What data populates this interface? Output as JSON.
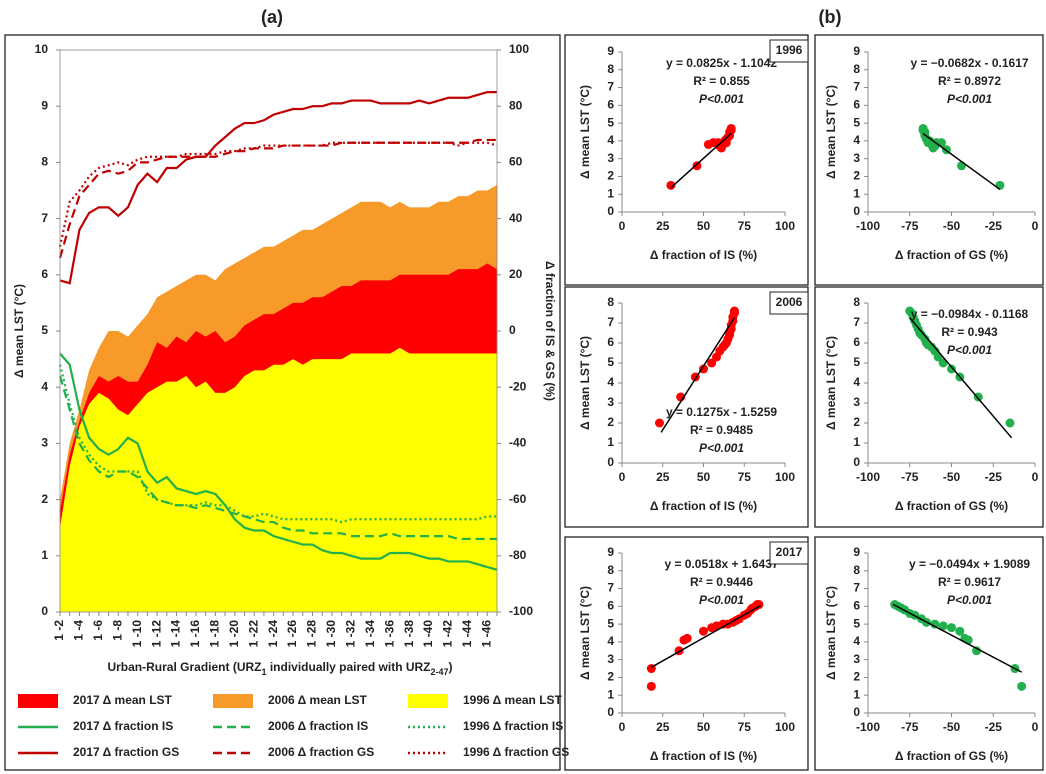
{
  "chart_data": [
    {
      "type": "area",
      "panel_label": "(a)",
      "y_label": "Δ mean LST (°C)",
      "y2_label": "Δ fraction of IS & GS (%)",
      "x_label": [
        "Urban-Rural Gradient (URZ",
        "1",
        " individually paired with URZ",
        "2-47",
        ")"
      ],
      "categories": [
        "1 -2",
        null,
        "1 -4",
        null,
        "1 -6",
        null,
        "1 -8",
        null,
        "1 -10",
        null,
        "1 -12",
        null,
        "1 -14",
        null,
        "1 -16",
        null,
        "1 -18",
        null,
        "1 -20",
        null,
        "1 -22",
        null,
        "1 -24",
        null,
        "1 -26",
        null,
        "1 -28",
        null,
        "1 -30",
        null,
        "1 -32",
        null,
        "1 -34",
        null,
        "1 -36",
        null,
        "1 -38",
        null,
        "1 -40",
        null,
        "1 -42",
        null,
        "1 -44",
        null,
        "1 -46",
        null
      ],
      "ylim": [
        0,
        10
      ],
      "yticks": [
        0,
        1,
        2,
        3,
        4,
        5,
        6,
        7,
        8,
        9,
        10
      ],
      "y2lim": [
        -100,
        100
      ],
      "y2ticks": [
        -100,
        -80,
        -60,
        -40,
        -20,
        0,
        20,
        40,
        60,
        80,
        100
      ],
      "series": [
        {
          "name": "2017 Δ mean LST",
          "style": "area",
          "color": "#ff0000",
          "values": [
            1.8,
            2.8,
            3.4,
            3.9,
            4.2,
            4.1,
            4.2,
            4.1,
            4.1,
            4.4,
            4.8,
            4.7,
            4.9,
            4.8,
            5.0,
            4.9,
            5.0,
            4.8,
            4.9,
            5.1,
            5.2,
            5.3,
            5.3,
            5.4,
            5.5,
            5.5,
            5.6,
            5.6,
            5.7,
            5.8,
            5.8,
            5.9,
            5.9,
            5.9,
            5.9,
            6.0,
            6.0,
            6.0,
            6.0,
            6.0,
            6.0,
            6.1,
            6.1,
            6.1,
            6.2,
            6.1
          ]
        },
        {
          "name": "2006 Δ mean LST",
          "style": "area",
          "color": "#f79a2a",
          "values": [
            2.0,
            3.0,
            3.6,
            4.3,
            4.7,
            5.0,
            5.0,
            4.9,
            5.1,
            5.3,
            5.6,
            5.7,
            5.8,
            5.9,
            6.0,
            6.0,
            5.9,
            6.1,
            6.2,
            6.3,
            6.4,
            6.5,
            6.5,
            6.6,
            6.7,
            6.8,
            6.8,
            6.9,
            7.0,
            7.1,
            7.2,
            7.3,
            7.3,
            7.3,
            7.2,
            7.3,
            7.2,
            7.2,
            7.2,
            7.3,
            7.3,
            7.4,
            7.4,
            7.5,
            7.5,
            7.6
          ]
        },
        {
          "name": "1996 Δ mean LST",
          "style": "area",
          "color": "#ffff00",
          "values": [
            1.5,
            2.6,
            3.3,
            3.7,
            3.9,
            3.8,
            3.6,
            3.5,
            3.7,
            3.9,
            4.0,
            4.1,
            4.1,
            4.2,
            4.0,
            4.1,
            3.9,
            3.9,
            4.0,
            4.2,
            4.3,
            4.3,
            4.4,
            4.4,
            4.5,
            4.4,
            4.5,
            4.5,
            4.5,
            4.5,
            4.6,
            4.6,
            4.6,
            4.6,
            4.6,
            4.7,
            4.6,
            4.6,
            4.6,
            4.6,
            4.6,
            4.6,
            4.6,
            4.6,
            4.6,
            4.6
          ]
        },
        {
          "name": "2017 Δ fraction IS",
          "style": "solid",
          "axis": "y2",
          "color": "#21b04b",
          "values": [
            -8,
            -12,
            -28,
            -38,
            -42,
            -44,
            -42,
            -38,
            -40,
            -50,
            -54,
            -52,
            -56,
            -57,
            -58,
            -57,
            -58,
            -62,
            -67,
            -70,
            -71,
            -71,
            -73,
            -74,
            -75,
            -76,
            -76,
            -78,
            -79,
            -79,
            -80,
            -81,
            -81,
            -81,
            -79,
            -79,
            -79,
            -80,
            -81,
            -81,
            -82,
            -82,
            -82,
            -83,
            -84,
            -85
          ]
        },
        {
          "name": "2006 Δ fraction IS",
          "style": "dashed",
          "axis": "y2",
          "color": "#21b04b",
          "values": [
            -16,
            -28,
            -40,
            -46,
            -50,
            -52,
            -50,
            -50,
            -52,
            -56,
            -60,
            -61,
            -62,
            -62,
            -63,
            -62,
            -63,
            -64,
            -65,
            -66,
            -67,
            -68,
            -68,
            -70,
            -71,
            -71,
            -72,
            -72,
            -72,
            -72,
            -73,
            -73,
            -73,
            -73,
            -72,
            -73,
            -73,
            -73,
            -73,
            -73,
            -73,
            -74,
            -74,
            -74,
            -74,
            -74
          ]
        },
        {
          "name": "1996 Δ fraction IS",
          "style": "dotted",
          "axis": "y2",
          "color": "#21b04b",
          "values": [
            -12,
            -26,
            -38,
            -44,
            -48,
            -50,
            -50,
            -50,
            -50,
            -58,
            -60,
            -61,
            -62,
            -62,
            -62,
            -61,
            -62,
            -62,
            -64,
            -66,
            -66,
            -65,
            -66,
            -67,
            -67,
            -67,
            -67,
            -67,
            -67,
            -68,
            -67,
            -67,
            -67,
            -67,
            -67,
            -67,
            -67,
            -67,
            -67,
            -67,
            -67,
            -67,
            -67,
            -67,
            -66,
            -66
          ]
        },
        {
          "name": "2017 Δ fraction GS",
          "style": "solid",
          "axis": "y2",
          "color": "#c00000",
          "values": [
            18,
            17,
            36,
            42,
            44,
            44,
            41,
            44,
            52,
            56,
            53,
            58,
            58,
            61,
            62,
            62,
            66,
            69,
            72,
            74,
            74,
            75,
            77,
            78,
            79,
            79,
            80,
            80,
            81,
            81,
            82,
            82,
            82,
            81,
            81,
            81,
            81,
            82,
            81,
            82,
            83,
            83,
            83,
            84,
            85,
            85
          ]
        },
        {
          "name": "2006 Δ fraction GS",
          "style": "dashed",
          "axis": "y2",
          "color": "#c00000",
          "values": [
            26,
            38,
            48,
            52,
            56,
            57,
            56,
            57,
            60,
            60,
            61,
            62,
            62,
            62,
            62,
            62,
            62,
            63,
            64,
            64,
            65,
            65,
            65,
            66,
            66,
            66,
            66,
            66,
            66,
            67,
            67,
            67,
            67,
            67,
            67,
            67,
            67,
            67,
            67,
            67,
            67,
            67,
            67,
            68,
            68,
            68
          ]
        },
        {
          "name": "1996 Δ fraction GS",
          "style": "dotted",
          "axis": "y2",
          "color": "#c00000",
          "values": [
            30,
            46,
            50,
            55,
            58,
            59,
            60,
            59,
            61,
            62,
            62,
            62,
            62,
            63,
            63,
            63,
            63,
            64,
            64,
            65,
            65,
            66,
            66,
            66,
            66,
            66,
            66,
            66,
            67,
            67,
            67,
            67,
            67,
            67,
            67,
            67,
            67,
            67,
            67,
            67,
            67,
            66,
            67,
            67,
            67,
            66
          ]
        }
      ]
    },
    {
      "type": "scatter",
      "panel_label": "(b)",
      "year": "1996",
      "x_label": "Δ fraction of IS (%)",
      "y_label": "Δ mean LST (°C)",
      "xlim": [
        0,
        100
      ],
      "xticks": [
        0,
        25,
        50,
        75,
        100
      ],
      "ylim": [
        0,
        9
      ],
      "yticks": [
        0,
        1,
        2,
        3,
        4,
        5,
        6,
        7,
        8,
        9
      ],
      "color": "#ff0000",
      "x": [
        30,
        46,
        53,
        56,
        59,
        60,
        61,
        62,
        63,
        64,
        64,
        65,
        66,
        66,
        67,
        67
      ],
      "y": [
        1.5,
        2.6,
        3.8,
        3.9,
        3.9,
        3.7,
        3.6,
        3.8,
        4.0,
        3.9,
        4.1,
        4.2,
        4.3,
        4.5,
        4.6,
        4.7
      ],
      "trendline": {
        "x": [
          30,
          67
        ],
        "y": [
          1.37,
          4.42
        ]
      },
      "annotations": [
        "y = 0.0825x - 1.1042",
        "R² = 0.855",
        "P<0.001"
      ]
    },
    {
      "type": "scatter",
      "x_label": "Δ fraction of GS (%)",
      "y_label": "Δ mean LST (°C)",
      "xlim": [
        -100,
        0
      ],
      "xticks": [
        -100,
        -75,
        -50,
        -25,
        0
      ],
      "ylim": [
        0,
        9
      ],
      "yticks": [
        0,
        1,
        2,
        3,
        4,
        5,
        6,
        7,
        8,
        9
      ],
      "color": "#21b04b",
      "x": [
        -21,
        -44,
        -53,
        -56,
        -59,
        -60,
        -61,
        -62,
        -63,
        -64,
        -65,
        -66,
        -66,
        -67,
        -67
      ],
      "y": [
        1.5,
        2.6,
        3.5,
        3.9,
        3.9,
        3.7,
        3.6,
        3.8,
        4.0,
        3.9,
        4.1,
        4.3,
        4.5,
        4.6,
        4.7
      ],
      "trendline": {
        "x": [
          -67,
          -21
        ],
        "y": [
          4.41,
          1.27
        ]
      },
      "annotations": [
        "y = −0.0682x - 0.1617",
        "R² = 0.8972",
        "P<0.001"
      ]
    },
    {
      "type": "scatter",
      "year": "2006",
      "x_label": "Δ fraction of IS (%)",
      "y_label": "Δ mean LST (°C)",
      "xlim": [
        0,
        100
      ],
      "xticks": [
        0,
        25,
        50,
        75,
        100
      ],
      "ylim": [
        0,
        8
      ],
      "yticks": [
        0,
        1,
        2,
        3,
        4,
        5,
        6,
        7,
        8
      ],
      "color": "#ff0000",
      "x": [
        23,
        36,
        45,
        50,
        55,
        58,
        60,
        62,
        63,
        64,
        65,
        66,
        66,
        67,
        67,
        68,
        68,
        69,
        69
      ],
      "y": [
        2.0,
        3.3,
        4.3,
        4.7,
        5.0,
        5.3,
        5.6,
        5.8,
        5.9,
        6.0,
        6.2,
        6.4,
        6.5,
        6.7,
        6.9,
        7.1,
        7.3,
        7.5,
        7.6
      ],
      "trendline": {
        "x": [
          24,
          69
        ],
        "y": [
          1.53,
          7.27
        ]
      },
      "annotations": [
        "y = 0.1275x - 1.5259",
        "R² = 0.9485",
        "P<0.001"
      ]
    },
    {
      "type": "scatter",
      "x_label": "Δ fraction of GS (%)",
      "y_label": "Δ mean LST (°C)",
      "xlim": [
        -100,
        0
      ],
      "xticks": [
        -100,
        -75,
        -50,
        -25,
        0
      ],
      "ylim": [
        0,
        8
      ],
      "yticks": [
        0,
        1,
        2,
        3,
        4,
        5,
        6,
        7,
        8
      ],
      "color": "#21b04b",
      "x": [
        -15,
        -34,
        -45,
        -50,
        -55,
        -58,
        -60,
        -62,
        -64,
        -65,
        -66,
        -68,
        -69,
        -70,
        -71,
        -72,
        -73,
        -74,
        -75
      ],
      "y": [
        2.0,
        3.3,
        4.3,
        4.7,
        5.0,
        5.3,
        5.6,
        5.8,
        5.9,
        6.0,
        6.2,
        6.4,
        6.5,
        6.7,
        6.9,
        7.1,
        7.3,
        7.5,
        7.6
      ],
      "trendline": {
        "x": [
          -75,
          -14
        ],
        "y": [
          7.26,
          1.26
        ]
      },
      "annotations": [
        "y = −0.0984x - 0.1168",
        "R² = 0.943",
        "P<0.001"
      ]
    },
    {
      "type": "scatter",
      "year": "2017",
      "x_label": "Δ fraction of IS (%)",
      "y_label": "Δ mean LST (°C)",
      "xlim": [
        0,
        100
      ],
      "xticks": [
        0,
        25,
        50,
        75,
        100
      ],
      "ylim": [
        0,
        9
      ],
      "yticks": [
        0,
        1,
        2,
        3,
        4,
        5,
        6,
        7,
        8,
        9
      ],
      "color": "#ff0000",
      "x": [
        18,
        18,
        35,
        38,
        40,
        50,
        55,
        58,
        62,
        65,
        68,
        70,
        72,
        75,
        77,
        79,
        80,
        82,
        83,
        84
      ],
      "y": [
        1.5,
        2.5,
        3.5,
        4.1,
        4.2,
        4.6,
        4.8,
        4.9,
        5.0,
        5.0,
        5.1,
        5.2,
        5.3,
        5.5,
        5.6,
        5.8,
        5.9,
        6.0,
        6.1,
        6.1
      ],
      "trendline": {
        "x": [
          18,
          85
        ],
        "y": [
          2.57,
          6.04
        ]
      },
      "annotations": [
        "y = 0.0518x + 1.6437",
        "R² = 0.9446",
        "P<0.001"
      ]
    },
    {
      "type": "scatter",
      "x_label": "Δ fraction of GS (%)",
      "y_label": "Δ mean LST (°C)",
      "xlim": [
        -100,
        0
      ],
      "xticks": [
        -100,
        -75,
        -50,
        -25,
        0
      ],
      "ylim": [
        0,
        9
      ],
      "yticks": [
        0,
        1,
        2,
        3,
        4,
        5,
        6,
        7,
        8,
        9
      ],
      "color": "#21b04b",
      "x": [
        -8,
        -12,
        -35,
        -40,
        -42,
        -45,
        -50,
        -55,
        -60,
        -65,
        -68,
        -72,
        -75,
        -78,
        -80,
        -82,
        -84
      ],
      "y": [
        1.5,
        2.5,
        3.5,
        4.1,
        4.2,
        4.6,
        4.8,
        4.9,
        5.0,
        5.1,
        5.3,
        5.5,
        5.6,
        5.8,
        5.9,
        6.0,
        6.1
      ],
      "trendline": {
        "x": [
          -85,
          -8
        ],
        "y": [
          6.11,
          2.3
        ]
      },
      "annotations": [
        "y = −0.0494x + 1.9089",
        "R² = 0.9617",
        "P<0.001"
      ]
    }
  ]
}
